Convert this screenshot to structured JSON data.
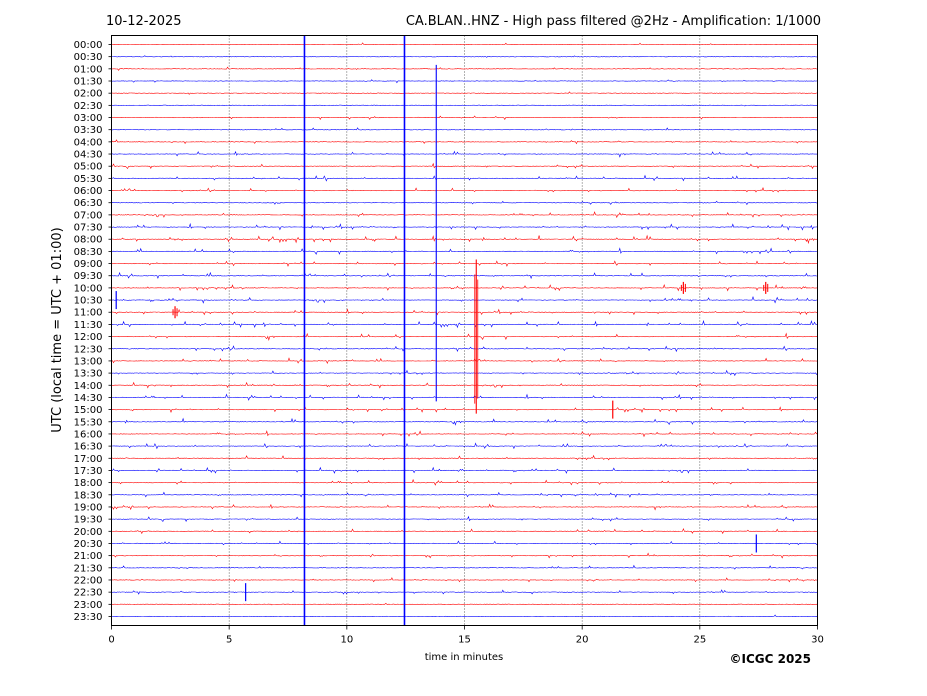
{
  "header": {
    "date": "10-12-2025",
    "title": "CA.BLAN..HNZ - High pass filtered @2Hz - Amplification: 1/1000"
  },
  "footer": {
    "copyright": "©ICGC 2025"
  },
  "colors": {
    "even_row": "#0000ff",
    "odd_row": "#ff0000",
    "grid": "#000000"
  },
  "chart_data": {
    "type": "line",
    "title": "CA.BLAN..HNZ - High pass filtered @2Hz - Amplification: 1/1000",
    "xlabel": "time in minutes",
    "ylabel": "UTC (local time = UTC + 01:00)",
    "xlim": [
      0,
      30
    ],
    "x_ticks": [
      "0",
      "5",
      "10",
      "15",
      "20",
      "25",
      "30"
    ],
    "x_tick_values": [
      0,
      5,
      10,
      15,
      20,
      25,
      30
    ],
    "vertical_gridlines": [
      5,
      10,
      15,
      20,
      25
    ],
    "rows": [
      "00:00",
      "00:30",
      "01:00",
      "01:30",
      "02:00",
      "02:30",
      "03:00",
      "03:30",
      "04:00",
      "04:30",
      "05:00",
      "05:30",
      "06:00",
      "06:30",
      "07:00",
      "07:30",
      "08:00",
      "08:30",
      "09:00",
      "09:30",
      "10:00",
      "10:30",
      "11:00",
      "11:30",
      "12:00",
      "12:30",
      "13:00",
      "13:30",
      "14:00",
      "14:30",
      "15:00",
      "15:30",
      "16:00",
      "16:30",
      "17:00",
      "17:30",
      "18:00",
      "18:30",
      "19:00",
      "19:30",
      "20:00",
      "20:30",
      "21:00",
      "21:30",
      "22:00",
      "22:30",
      "23:00",
      "23:30"
    ],
    "row_colors": "alternating red/blue by row",
    "activity_by_row": [
      0.05,
      0.05,
      0.12,
      0.12,
      0.06,
      0.06,
      0.18,
      0.1,
      0.2,
      0.4,
      0.4,
      0.45,
      0.45,
      0.15,
      0.4,
      0.6,
      0.7,
      0.6,
      0.5,
      0.5,
      0.5,
      0.5,
      0.5,
      0.6,
      0.6,
      0.5,
      0.45,
      0.4,
      0.4,
      0.45,
      0.45,
      0.5,
      0.5,
      0.45,
      0.45,
      0.45,
      0.4,
      0.4,
      0.4,
      0.4,
      0.35,
      0.35,
      0.3,
      0.25,
      0.3,
      0.25,
      0.05,
      0.05
    ],
    "events": [
      {
        "time_min": 8.2,
        "row_start": "00:00",
        "row_end": "23:30",
        "color": "blue",
        "description_type": "full-height vertical trace"
      },
      {
        "time_min": 12.45,
        "row_start": "00:00",
        "row_end": "23:30",
        "color": "blue",
        "description_type": "full-height vertical trace"
      },
      {
        "time_min": 13.8,
        "row_start": "01:00",
        "row_end": "14:30",
        "color": "blue",
        "description_type": "long vertical trace"
      },
      {
        "time_min": 15.5,
        "row_start": "09:00",
        "row_end": "15:00",
        "color": "red",
        "description_type": "large amplitude spike"
      },
      {
        "time_min": 0.2,
        "row": "10:30",
        "color": "blue",
        "description_type": "spike"
      },
      {
        "time_min": 5.7,
        "row": "22:30",
        "color": "blue",
        "description_type": "spike"
      },
      {
        "time_min": 27.4,
        "row": "20:30",
        "color": "blue",
        "description_type": "spike"
      },
      {
        "time_min": 24.3,
        "row": "10:00",
        "color": "red",
        "description_type": "burst"
      },
      {
        "time_min": 27.8,
        "row": "10:00",
        "color": "red",
        "description_type": "burst"
      },
      {
        "time_min": 2.7,
        "row": "11:00",
        "color": "red",
        "description_type": "burst"
      },
      {
        "time_min": 21.3,
        "row": "15:00",
        "color": "red",
        "description_type": "spike"
      }
    ]
  }
}
